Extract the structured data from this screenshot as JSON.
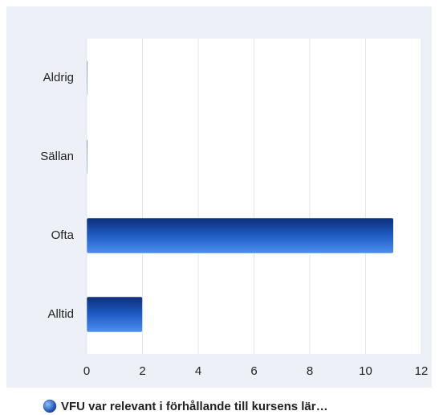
{
  "chart_data": {
    "type": "bar",
    "orientation": "horizontal",
    "categories": [
      "Aldrig",
      "Sällan",
      "Ofta",
      "Alltid"
    ],
    "series": [
      {
        "name": "VFU var relevant i förhållande till kursens lär…",
        "color": "#1f5cc4",
        "values": [
          0,
          0,
          11,
          2
        ]
      }
    ],
    "xlim": [
      0,
      12
    ],
    "xticks": [
      0,
      2,
      4,
      6,
      8,
      10,
      12
    ],
    "grid": true,
    "legend": "bottom"
  }
}
